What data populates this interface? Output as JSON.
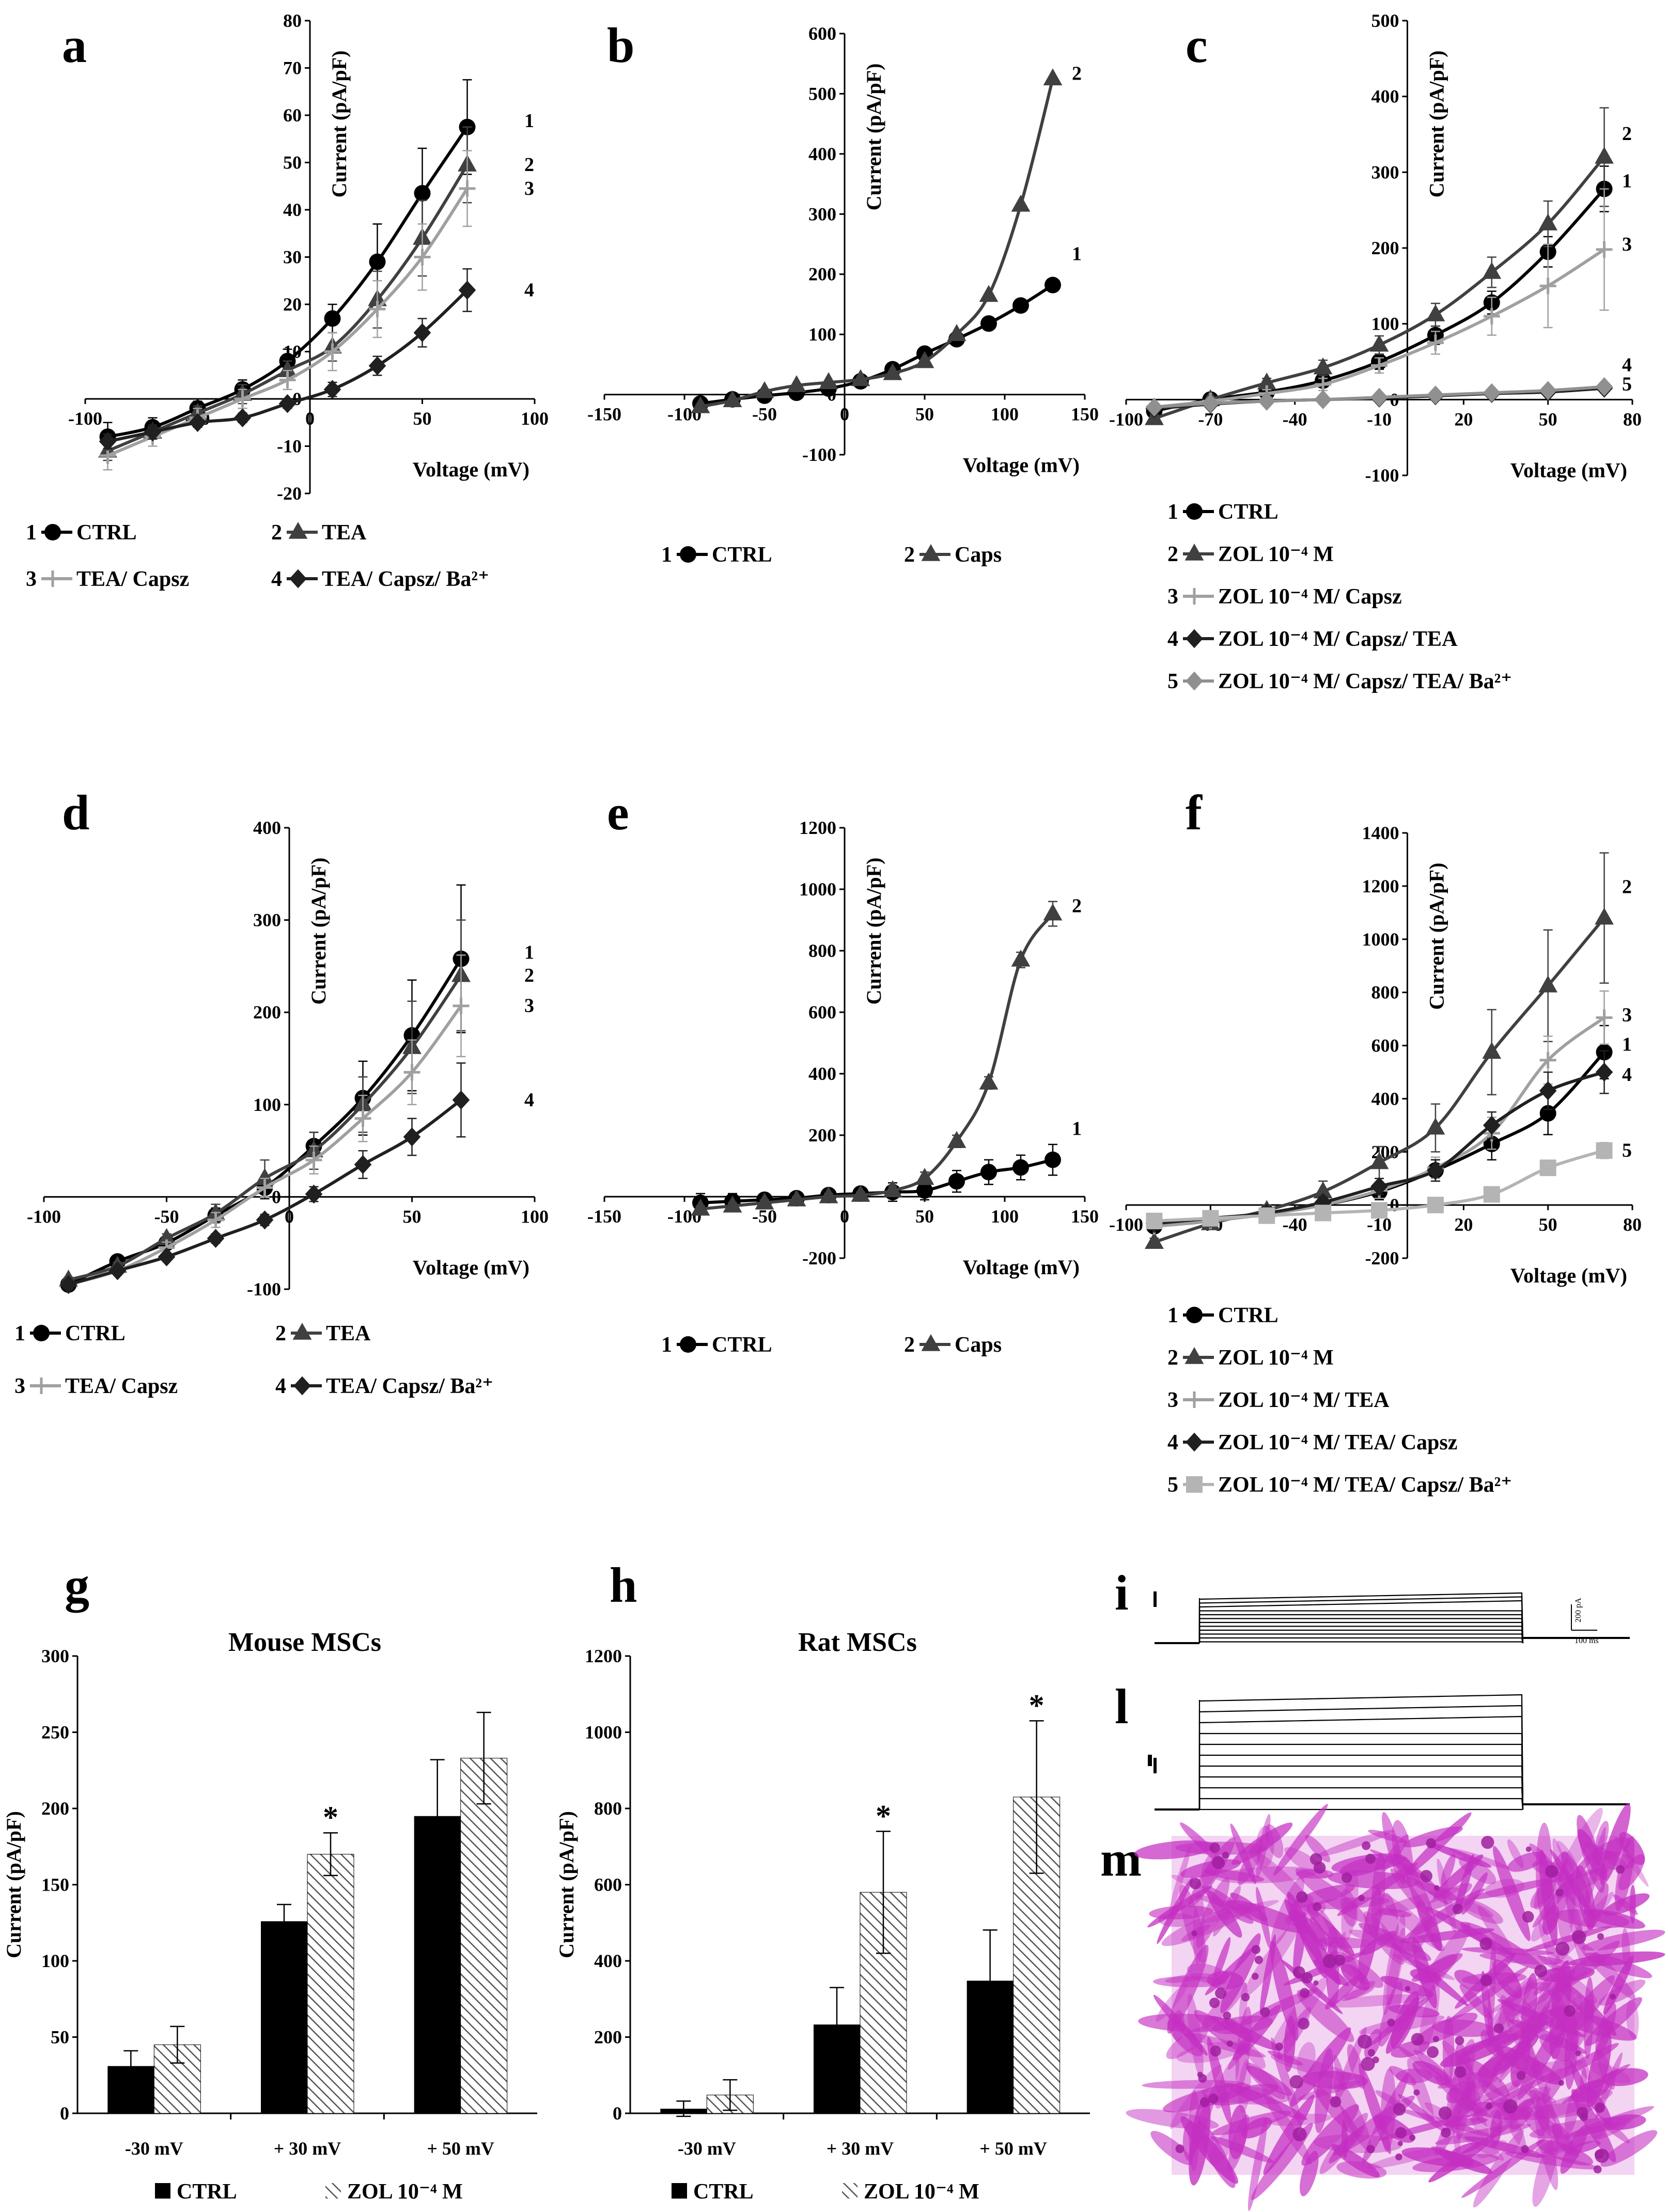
{
  "chart_data": [
    {
      "id": "a",
      "type": "line",
      "panel_label": "a",
      "xlabel": "Voltage (mV)",
      "ylabel": "Current  (pA/pF)",
      "xlim": [
        -100,
        100
      ],
      "ylim": [
        -20,
        80
      ],
      "xticks": [
        -100,
        -50,
        0,
        50,
        100
      ],
      "yticks": [
        -20,
        -10,
        0,
        10,
        20,
        30,
        40,
        50,
        60,
        70,
        80
      ],
      "xtick_labels": [
        "-100",
        "-50",
        "0",
        "50",
        "100"
      ],
      "ytick_labels": [
        "-20",
        "-10",
        "0",
        "10",
        "20",
        "30",
        "40",
        "50",
        "60",
        "70",
        "80"
      ],
      "x": [
        -90,
        -70,
        -50,
        -30,
        -10,
        10,
        30,
        50,
        70
      ],
      "series": [
        {
          "name": "CTRL",
          "num": "1",
          "marker": "circle",
          "color": "#000000",
          "values": [
            -8,
            -6,
            -2,
            2,
            8,
            17,
            29,
            43.5,
            57.5
          ],
          "err": [
            3,
            2,
            1.5,
            2,
            2.5,
            3,
            8,
            9.5,
            10
          ]
        },
        {
          "name": "TEA",
          "num": "2",
          "marker": "triangle",
          "color": "#404040",
          "values": [
            -11,
            -7,
            -3,
            1,
            6,
            11,
            21,
            34,
            49.5
          ],
          "err": [
            2,
            1.5,
            1.5,
            2,
            2,
            3,
            6,
            8,
            8
          ]
        },
        {
          "name": "TEA/ Capsz",
          "num": "3",
          "marker": "cross",
          "color": "#a0a0a0",
          "values": [
            -12,
            -8,
            -4,
            0,
            4,
            10,
            19,
            30,
            44.5
          ],
          "err": [
            3,
            2,
            2,
            2,
            2,
            4,
            6,
            7,
            8
          ]
        },
        {
          "name": "TEA/ Capsz/ Ba²⁺",
          "num": "4",
          "marker": "diamond",
          "color": "#202020",
          "values": [
            -9,
            -7,
            -5,
            -4,
            -1,
            2,
            7,
            14,
            23
          ],
          "err": [
            1.5,
            1.5,
            1,
            1,
            1,
            1.5,
            2,
            3,
            4.5
          ]
        }
      ],
      "legend_layout": "two-column"
    },
    {
      "id": "b",
      "type": "line",
      "panel_label": "b",
      "xlabel": "Voltage (mV)",
      "ylabel": "Current  (pA/pF)",
      "xlim": [
        -150,
        150
      ],
      "ylim": [
        -100,
        600
      ],
      "xticks": [
        -150,
        -100,
        -50,
        0,
        50,
        100,
        150
      ],
      "yticks": [
        -100,
        0,
        100,
        200,
        300,
        400,
        500,
        600
      ],
      "xtick_labels": [
        "-150",
        "-100",
        "-50",
        "0",
        "50",
        "100",
        "150"
      ],
      "ytick_labels": [
        "-100",
        "0",
        "100",
        "200",
        "300",
        "400",
        "500",
        "600"
      ],
      "x": [
        -90,
        -70,
        -50,
        -30,
        -10,
        10,
        30,
        50,
        70,
        90,
        110,
        130
      ],
      "series": [
        {
          "name": "CTRL",
          "num": "1",
          "marker": "circle",
          "color": "#000000",
          "values": [
            -15,
            -8,
            -2,
            3,
            10,
            22,
            42,
            68,
            92,
            118,
            148,
            182
          ]
        },
        {
          "name": "Caps",
          "num": "2",
          "marker": "triangle",
          "color": "#404040",
          "values": [
            -20,
            -10,
            5,
            15,
            20,
            25,
            35,
            55,
            100,
            165,
            315,
            525
          ]
        }
      ],
      "legend_layout": "one-row"
    },
    {
      "id": "c",
      "type": "line",
      "panel_label": "c",
      "xlabel": "Voltage (mV)",
      "ylabel": "Current  (pA/pF)",
      "xlim": [
        -100,
        80
      ],
      "ylim": [
        -100,
        500
      ],
      "xticks": [
        -100,
        -70,
        -40,
        -10,
        20,
        50,
        80
      ],
      "yticks": [
        -100,
        0,
        100,
        200,
        300,
        400,
        500
      ],
      "xtick_labels": [
        "-100",
        "-70",
        "-40",
        "-10",
        "20",
        "50",
        "80"
      ],
      "ytick_labels": [
        "-100",
        "0",
        "100",
        "200",
        "300",
        "400",
        "500"
      ],
      "x": [
        -90,
        -70,
        -50,
        -30,
        -10,
        10,
        30,
        50,
        70
      ],
      "series": [
        {
          "name": "CTRL",
          "num": "1",
          "marker": "circle",
          "color": "#000000",
          "values": [
            -15,
            0,
            10,
            25,
            50,
            85,
            128,
            195,
            278
          ],
          "err": [
            3,
            3,
            5,
            8,
            10,
            12,
            15,
            20,
            30
          ]
        },
        {
          "name": "ZOL 10⁻⁴ M",
          "num": "2",
          "marker": "triangle",
          "color": "#404040",
          "values": [
            -25,
            0,
            22,
            42,
            72,
            112,
            168,
            232,
            320
          ],
          "err": [
            5,
            4,
            6,
            10,
            12,
            15,
            20,
            30,
            65
          ]
        },
        {
          "name": "ZOL 10⁻⁴ M/ Capsz",
          "num": "3",
          "marker": "cross",
          "color": "#a0a0a0",
          "values": [
            -10,
            -2,
            8,
            20,
            45,
            75,
            110,
            150,
            198
          ],
          "err": [
            3,
            3,
            5,
            8,
            10,
            15,
            25,
            55,
            80
          ]
        },
        {
          "name": "ZOL 10⁻⁴ M/ Capsz/ TEA",
          "num": "4",
          "marker": "diamond",
          "color": "#202020",
          "values": [
            -12,
            -6,
            -2,
            0,
            2,
            5,
            8,
            10,
            15
          ],
          "err": [
            2,
            2,
            2,
            2,
            2,
            2,
            2,
            2,
            3
          ]
        },
        {
          "name": "ZOL 10⁻⁴ M/ Capsz/ TEA/ Ba²⁺",
          "num": "5",
          "marker": "diamond",
          "color": "#909090",
          "values": [
            -10,
            -5,
            -2,
            0,
            3,
            6,
            9,
            12,
            17
          ],
          "err": [
            2,
            2,
            2,
            2,
            2,
            2,
            2,
            2,
            3
          ]
        }
      ],
      "legend_layout": "list"
    },
    {
      "id": "d",
      "type": "line",
      "panel_label": "d",
      "xlabel": "Voltage (mV)",
      "ylabel": "Current  (pA/pF)",
      "xlim": [
        -100,
        100
      ],
      "ylim": [
        -100,
        400
      ],
      "xticks": [
        -100,
        -50,
        0,
        50,
        100
      ],
      "yticks": [
        -100,
        0,
        100,
        200,
        300,
        400
      ],
      "xtick_labels": [
        "-100",
        "-50",
        "0",
        "50",
        "100"
      ],
      "ytick_labels": [
        "-100",
        "0",
        "100",
        "200",
        "300",
        "400"
      ],
      "x": [
        -90,
        -70,
        -50,
        -30,
        -10,
        10,
        30,
        50,
        70
      ],
      "series": [
        {
          "name": "CTRL",
          "num": "1",
          "marker": "circle",
          "color": "#000000",
          "values": [
            -95,
            -70,
            -50,
            -20,
            10,
            55,
            107,
            175,
            258
          ],
          "err": [
            3,
            4,
            5,
            8,
            12,
            15,
            40,
            60,
            80
          ]
        },
        {
          "name": "TEA",
          "num": "2",
          "marker": "triangle",
          "color": "#404040",
          "values": [
            -90,
            -75,
            -45,
            -18,
            20,
            50,
            100,
            162,
            240
          ],
          "err": [
            3,
            4,
            5,
            10,
            20,
            20,
            30,
            50,
            60
          ]
        },
        {
          "name": "TEA/ Capsz",
          "num": "3",
          "marker": "cross",
          "color": "#a0a0a0",
          "values": [
            -95,
            -80,
            -55,
            -25,
            10,
            40,
            85,
            135,
            207
          ],
          "err": [
            3,
            4,
            6,
            8,
            10,
            15,
            25,
            35,
            55
          ]
        },
        {
          "name": "TEA/ Capsz/ Ba²⁺",
          "num": "4",
          "marker": "diamond",
          "color": "#202020",
          "values": [
            -95,
            -80,
            -65,
            -45,
            -25,
            3,
            35,
            65,
            105
          ],
          "err": [
            3,
            3,
            4,
            5,
            6,
            8,
            15,
            20,
            40
          ]
        }
      ],
      "legend_layout": "two-column"
    },
    {
      "id": "e",
      "type": "line",
      "panel_label": "e",
      "xlabel": "Voltage (mV)",
      "ylabel": "Current  (pA/pF)",
      "xlim": [
        -150,
        150
      ],
      "ylim": [
        -200,
        1200
      ],
      "xticks": [
        -150,
        -100,
        -50,
        0,
        50,
        100,
        150
      ],
      "yticks": [
        -200,
        0,
        200,
        400,
        600,
        800,
        1000,
        1200
      ],
      "xtick_labels": [
        "-150",
        "-100",
        "-50",
        "0",
        "50",
        "100",
        "150"
      ],
      "ytick_labels": [
        "-200",
        "0",
        "200",
        "400",
        "600",
        "800",
        "1000",
        "1200"
      ],
      "x": [
        -90,
        -70,
        -50,
        -30,
        -10,
        10,
        30,
        50,
        70,
        90,
        110,
        130
      ],
      "series": [
        {
          "name": "CTRL",
          "num": "1",
          "marker": "circle",
          "color": "#000000",
          "values": [
            -20,
            -15,
            -10,
            -5,
            5,
            10,
            15,
            20,
            50,
            80,
            95,
            120
          ],
          "err": [
            30,
            25,
            20,
            15,
            15,
            20,
            30,
            30,
            35,
            40,
            40,
            50
          ]
        },
        {
          "name": "Caps",
          "num": "2",
          "marker": "triangle",
          "color": "#404040",
          "values": [
            -40,
            -30,
            -20,
            -10,
            0,
            5,
            20,
            60,
            180,
            370,
            770,
            920
          ],
          "err": [
            10,
            10,
            10,
            10,
            10,
            10,
            15,
            20,
            20,
            20,
            25,
            40
          ]
        }
      ],
      "legend_layout": "one-row"
    },
    {
      "id": "f",
      "type": "line",
      "panel_label": "f",
      "xlabel": "Voltage (mV)",
      "ylabel": "Current  (pA/pF)",
      "xlim": [
        -100,
        80
      ],
      "ylim": [
        -200,
        1400
      ],
      "xticks": [
        -100,
        -70,
        -40,
        -10,
        20,
        50,
        80
      ],
      "yticks": [
        -200,
        0,
        200,
        400,
        600,
        800,
        1000,
        1200,
        1400
      ],
      "xtick_labels": [
        "-100",
        "-70",
        "-40",
        "-10",
        "20",
        "50",
        "80"
      ],
      "ytick_labels": [
        "-200",
        "0",
        "200",
        "400",
        "600",
        "800",
        "1000",
        "1200",
        "1400"
      ],
      "x": [
        -90,
        -70,
        -50,
        -30,
        -10,
        10,
        30,
        50,
        70
      ],
      "series": [
        {
          "name": "CTRL",
          "num": "1",
          "marker": "circle",
          "color": "#000000",
          "values": [
            -80,
            -60,
            -30,
            0,
            50,
            130,
            230,
            345,
            575
          ],
          "err": [
            10,
            10,
            15,
            20,
            30,
            40,
            60,
            80,
            100
          ]
        },
        {
          "name": "ZOL 10⁻⁴ M",
          "num": "2",
          "marker": "triangle",
          "color": "#404040",
          "values": [
            -140,
            -70,
            -20,
            50,
            160,
            290,
            575,
            825,
            1080
          ],
          "err": [
            15,
            15,
            20,
            40,
            60,
            90,
            160,
            210,
            245
          ]
        },
        {
          "name": "ZOL 10⁻⁴ M/ TEA",
          "num": "3",
          "marker": "cross",
          "color": "#a0a0a0",
          "values": [
            -80,
            -60,
            -35,
            0,
            55,
            140,
            270,
            545,
            705
          ],
          "err": [
            10,
            10,
            15,
            20,
            30,
            40,
            60,
            90,
            100
          ]
        },
        {
          "name": "ZOL 10⁻⁴ M/ TEA/ Capsz",
          "num": "4",
          "marker": "diamond",
          "color": "#202020",
          "values": [
            -70,
            -50,
            -30,
            10,
            70,
            130,
            300,
            430,
            500
          ],
          "err": [
            10,
            10,
            15,
            20,
            30,
            40,
            50,
            70,
            80
          ]
        },
        {
          "name": "ZOL 10⁻⁴ M/ TEA/ Capsz/ Ba²⁺",
          "num": "5",
          "marker": "square",
          "color": "#b4b4b4",
          "values": [
            -60,
            -50,
            -40,
            -30,
            -20,
            0,
            40,
            140,
            205
          ],
          "err": [
            10,
            10,
            10,
            10,
            10,
            15,
            20,
            25,
            30
          ]
        }
      ],
      "legend_layout": "list"
    },
    {
      "id": "g",
      "type": "bar",
      "panel_label": "g",
      "title": "Mouse MSCs",
      "ylabel": "Current  (pA/pF)",
      "ylim": [
        0,
        300
      ],
      "yticks": [
        0,
        50,
        100,
        150,
        200,
        250,
        300
      ],
      "ytick_labels": [
        "0",
        "50",
        "100",
        "150",
        "200",
        "250",
        "300"
      ],
      "categories": [
        "-30 mV",
        "+ 30 mV",
        "+ 50 mV"
      ],
      "series": [
        {
          "name": "CTRL",
          "fill": "solid",
          "values": [
            31,
            126,
            195
          ],
          "err": [
            10,
            11,
            37
          ]
        },
        {
          "name": "ZOL 10⁻⁴ M",
          "fill": "hatch",
          "values": [
            45,
            170,
            233
          ],
          "err": [
            12,
            14,
            30
          ]
        }
      ],
      "significance": [
        "",
        "*",
        ""
      ]
    },
    {
      "id": "h",
      "type": "bar",
      "panel_label": "h",
      "title": "Rat MSCs",
      "ylabel": "Current  (pA/pF)",
      "ylim": [
        0,
        1200
      ],
      "yticks": [
        0,
        200,
        400,
        600,
        800,
        1000,
        1200
      ],
      "ytick_labels": [
        "0",
        "200",
        "400",
        "600",
        "800",
        "1000",
        "1200"
      ],
      "categories": [
        "-30 mV",
        "+ 30 mV",
        "+ 50 mV"
      ],
      "series": [
        {
          "name": "CTRL",
          "fill": "solid",
          "values": [
            12,
            233,
            348
          ],
          "err": [
            20,
            97,
            133
          ]
        },
        {
          "name": "ZOL 10⁻⁴ M",
          "fill": "hatch",
          "values": [
            48,
            580,
            830
          ],
          "err": [
            40,
            160,
            200
          ]
        }
      ],
      "significance": [
        "",
        "*",
        "*"
      ]
    }
  ],
  "images": {
    "i": {
      "panel_label": "i",
      "scale_current": "200 pA",
      "scale_time": "100 ms"
    },
    "l": {
      "panel_label": "l"
    },
    "m": {
      "panel_label": "m",
      "stain_color": "#c42fc2",
      "background_color": "#f3d4f2"
    }
  },
  "colors": {
    "line_dark": "#000000",
    "hatch": "#555555"
  }
}
